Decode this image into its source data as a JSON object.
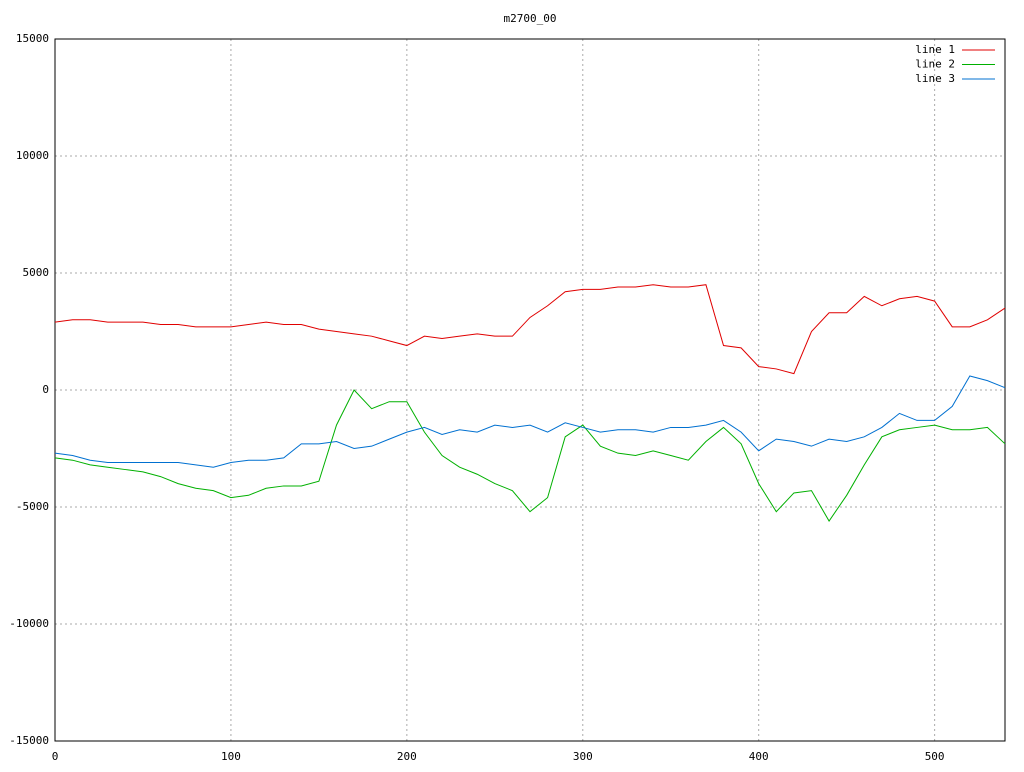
{
  "chart_data": {
    "type": "line",
    "title": "m2700_00",
    "x": [
      0,
      10,
      20,
      30,
      40,
      50,
      60,
      70,
      80,
      90,
      100,
      110,
      120,
      130,
      140,
      150,
      160,
      170,
      180,
      190,
      200,
      210,
      220,
      230,
      240,
      250,
      260,
      270,
      280,
      290,
      300,
      310,
      320,
      330,
      340,
      350,
      360,
      370,
      380,
      390,
      400,
      410,
      420,
      430,
      440,
      450,
      460,
      470,
      480,
      490,
      500,
      510,
      520,
      530,
      540
    ],
    "series": [
      {
        "name": "line 1",
        "color": "#e00000",
        "values": [
          2900,
          3000,
          3000,
          2900,
          2900,
          2900,
          2800,
          2800,
          2700,
          2700,
          2700,
          2800,
          2900,
          2800,
          2800,
          2600,
          2500,
          2400,
          2300,
          2100,
          1900,
          2300,
          2200,
          2300,
          2400,
          2300,
          2300,
          3100,
          3600,
          4200,
          4300,
          4300,
          4400,
          4400,
          4500,
          4400,
          4400,
          4500,
          1900,
          1800,
          1000,
          900,
          700,
          2500,
          3300,
          3300,
          4000,
          3600,
          3900,
          4000,
          3800,
          2700,
          2700,
          3000,
          3500
        ]
      },
      {
        "name": "line 2",
        "color": "#00b000",
        "values": [
          -2900,
          -3000,
          -3200,
          -3300,
          -3400,
          -3500,
          -3700,
          -4000,
          -4200,
          -4300,
          -4600,
          -4500,
          -4200,
          -4100,
          -4100,
          -3900,
          -1500,
          0,
          -800,
          -500,
          -500,
          -1800,
          -2800,
          -3300,
          -3600,
          -4000,
          -4300,
          -5200,
          -4600,
          -2000,
          -1500,
          -2400,
          -2700,
          -2800,
          -2600,
          -2800,
          -3000,
          -2200,
          -1600,
          -2300,
          -4000,
          -5200,
          -4400,
          -4300,
          -5600,
          -4500,
          -3200,
          -2000,
          -1700,
          -1600,
          -1500,
          -1700,
          -1700,
          -1600,
          -2300
        ]
      },
      {
        "name": "line 3",
        "color": "#0070d0",
        "values": [
          -2700,
          -2800,
          -3000,
          -3100,
          -3100,
          -3100,
          -3100,
          -3100,
          -3200,
          -3300,
          -3100,
          -3000,
          -3000,
          -2900,
          -2300,
          -2300,
          -2200,
          -2500,
          -2400,
          -2100,
          -1800,
          -1600,
          -1900,
          -1700,
          -1800,
          -1500,
          -1600,
          -1500,
          -1800,
          -1400,
          -1600,
          -1800,
          -1700,
          -1700,
          -1800,
          -1600,
          -1600,
          -1500,
          -1300,
          -1800,
          -2600,
          -2100,
          -2200,
          -2400,
          -2100,
          -2200,
          -2000,
          -1600,
          -1000,
          -1300,
          -1300,
          -700,
          600,
          400,
          100
        ]
      }
    ],
    "xlim": [
      0,
      540
    ],
    "xticks": [
      0,
      100,
      200,
      300,
      400,
      500
    ],
    "ylim": [
      -15000,
      15000
    ],
    "yticks": [
      -15000,
      -10000,
      -5000,
      0,
      5000,
      10000,
      15000
    ],
    "grid": true,
    "legend": "upper right"
  }
}
